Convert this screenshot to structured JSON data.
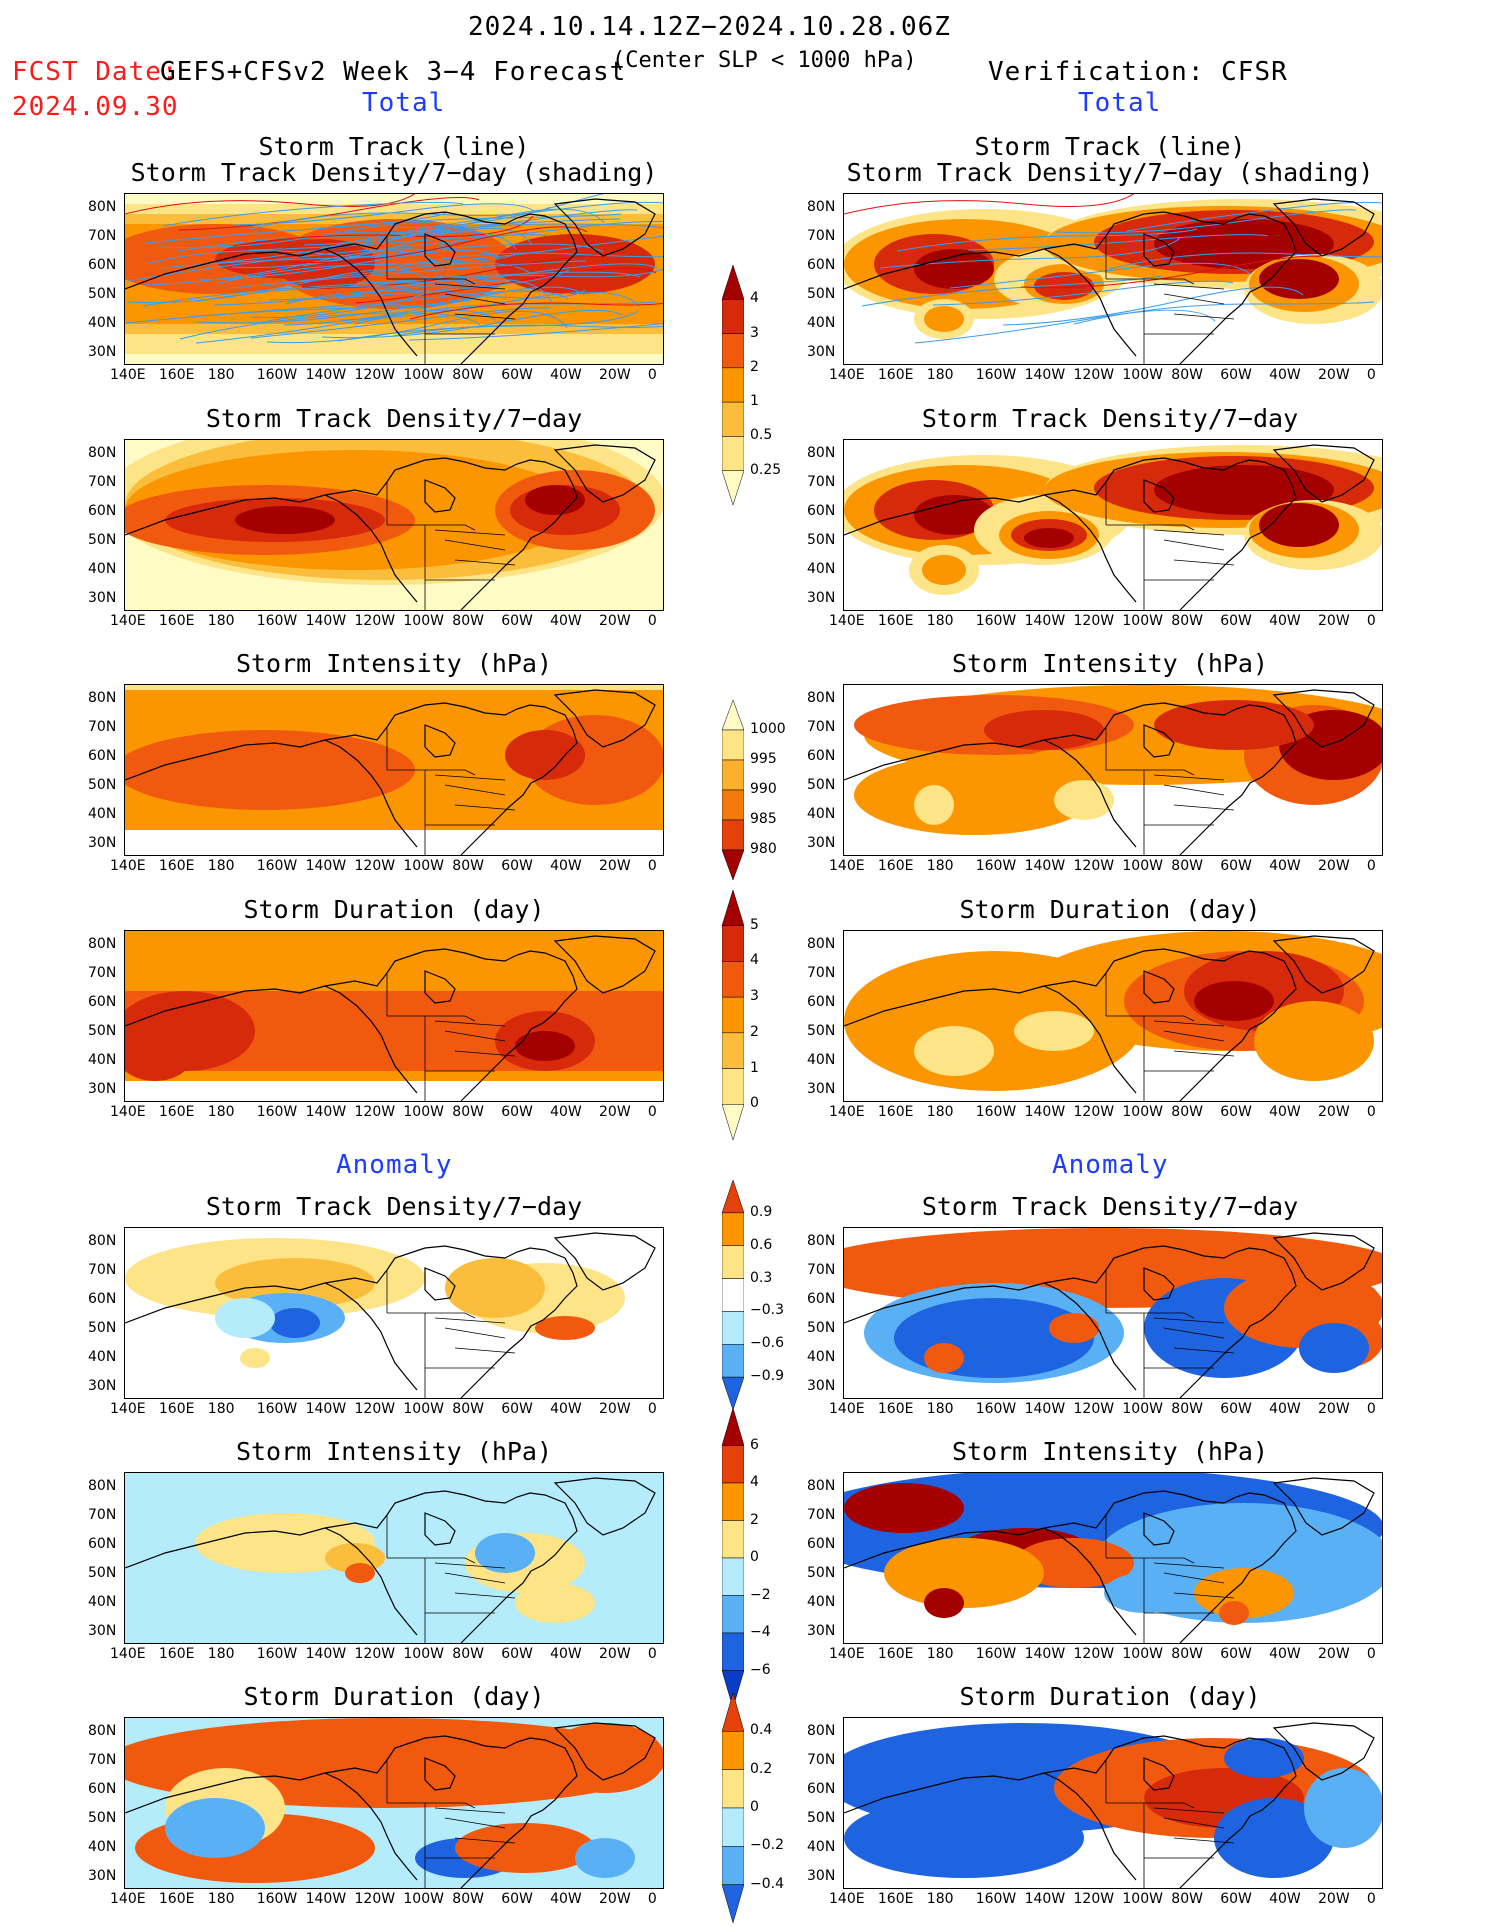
{
  "header": {
    "period": "2024.10.14.12Z−2024.10.28.06Z",
    "fcst_label": "FCST Date:",
    "fcst_date": "2024.09.30",
    "model": "GEFS+CFSv2 Week 3−4 Forecast",
    "criterion": "(Center SLP < 1000 hPa)",
    "verification": "Verification: CFSR"
  },
  "sections": {
    "total_left": "Total",
    "total_right": "Total",
    "anom_left": "Anomaly",
    "anom_right": "Anomaly"
  },
  "panels": {
    "track_line": "Storm Track (line)",
    "track_shading": "Storm Track Density/7−day (shading)",
    "density": "Storm Track Density/7−day",
    "intensity": "Storm Intensity (hPa)",
    "duration": "Storm Duration (day)"
  },
  "axes": {
    "lat_labels": [
      "80N",
      "70N",
      "60N",
      "50N",
      "40N",
      "30N"
    ],
    "lon_labels": [
      "140E",
      "160E",
      "180",
      "160W",
      "140W",
      "120W",
      "100W",
      "80W",
      "60W",
      "40W",
      "20W",
      "0"
    ]
  },
  "colorbars": {
    "density": {
      "labels": [
        "4",
        "3",
        "2",
        "1",
        "0.5",
        "0.25"
      ],
      "colors": [
        "#a50000",
        "#d62a0b",
        "#f15a0e",
        "#fb9500",
        "#fbbe3c",
        "#fde487",
        "#fffbc5"
      ]
    },
    "intensity": {
      "labels": [
        "1000",
        "995",
        "990",
        "985",
        "980"
      ],
      "colors": [
        "#fffbc5",
        "#fde487",
        "#fbb12b",
        "#f47a0b",
        "#e4410b",
        "#a50000"
      ]
    },
    "duration": {
      "labels": [
        "5",
        "4",
        "3",
        "2",
        "1",
        "0"
      ],
      "colors": [
        "#a50000",
        "#d62a0b",
        "#f15a0e",
        "#fb9500",
        "#fbbe3c",
        "#fde487",
        "#fffbc5"
      ]
    },
    "density_anom": {
      "labels": [
        "0.9",
        "0.6",
        "0.3",
        "−0.3",
        "−0.6",
        "−0.9"
      ],
      "colors": [
        "#e4410b",
        "#fb9500",
        "#fde487",
        "#ffffff",
        "#b4ecfb",
        "#5ab0f5",
        "#1e64e0"
      ]
    },
    "intensity_anom": {
      "labels": [
        "6",
        "4",
        "2",
        "0",
        "−2",
        "−4",
        "−6"
      ],
      "colors": [
        "#a50000",
        "#e4410b",
        "#fb9500",
        "#fde487",
        "#b4ecfb",
        "#5ab0f5",
        "#1e64e0",
        "#0a3cc8"
      ]
    },
    "duration_anom": {
      "labels": [
        "0.4",
        "0.2",
        "0",
        "−0.2",
        "−0.4"
      ],
      "colors": [
        "#e4410b",
        "#fb9500",
        "#fde487",
        "#b4ecfb",
        "#5ab0f5",
        "#1e64e0"
      ]
    }
  }
}
